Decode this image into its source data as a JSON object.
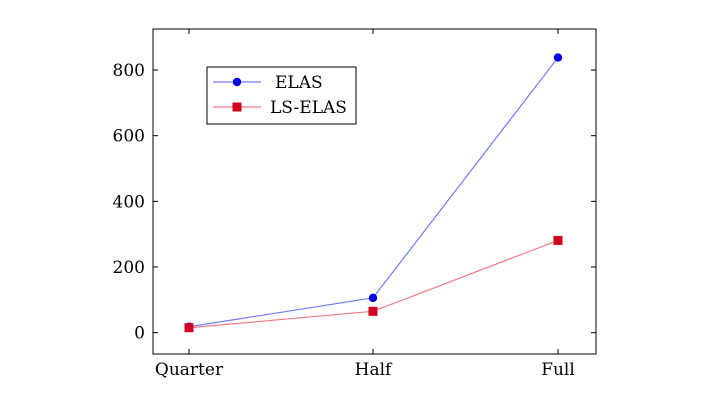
{
  "chart_data": {
    "type": "line",
    "categories": [
      "Quarter",
      "Half",
      "Full"
    ],
    "series": [
      {
        "name": "ELAS",
        "values": [
          18,
          106,
          838
        ],
        "color": "#0000e6",
        "line_color": "#6f7cf5",
        "marker": "circle"
      },
      {
        "name": "LS-ELAS",
        "values": [
          15,
          65,
          281
        ],
        "color": "#d2001f",
        "line_color": "#f07b86",
        "marker": "square"
      }
    ],
    "yticks": [
      0,
      200,
      400,
      600,
      800
    ],
    "ylim": [
      -65,
      925
    ],
    "grid": false,
    "legend_position": "top-left"
  }
}
